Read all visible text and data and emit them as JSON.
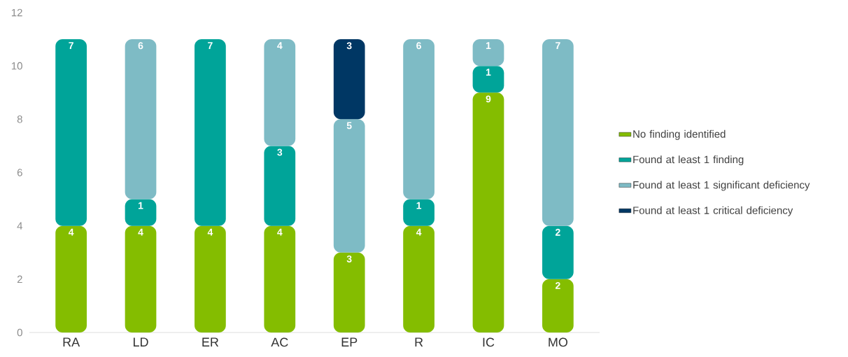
{
  "chart_data": {
    "type": "bar",
    "stacked": true,
    "data_labels": true,
    "legend": "right",
    "categories": [
      "RA",
      "LD",
      "ER",
      "AC",
      "EP",
      "R",
      "IC",
      "MO"
    ],
    "series": [
      {
        "name": "No finding identified",
        "color": "#84bd00",
        "values": [
          4,
          4,
          4,
          4,
          3,
          4,
          9,
          2
        ]
      },
      {
        "name": "Found at least 1 finding",
        "color": "#00a499",
        "values": [
          7,
          1,
          7,
          3,
          null,
          1,
          1,
          2
        ]
      },
      {
        "name": "Found at least 1 significant deficiency",
        "color": "#7ebbc5",
        "values": [
          null,
          6,
          null,
          4,
          5,
          6,
          1,
          7
        ]
      },
      {
        "name": "Found at least 1 critical deficiency",
        "color": "#003764",
        "values": [
          null,
          null,
          null,
          null,
          3,
          null,
          null,
          null
        ]
      }
    ],
    "ylim": [
      0,
      12
    ],
    "yticks": [
      0,
      2,
      4,
      6,
      8,
      10,
      12
    ]
  }
}
